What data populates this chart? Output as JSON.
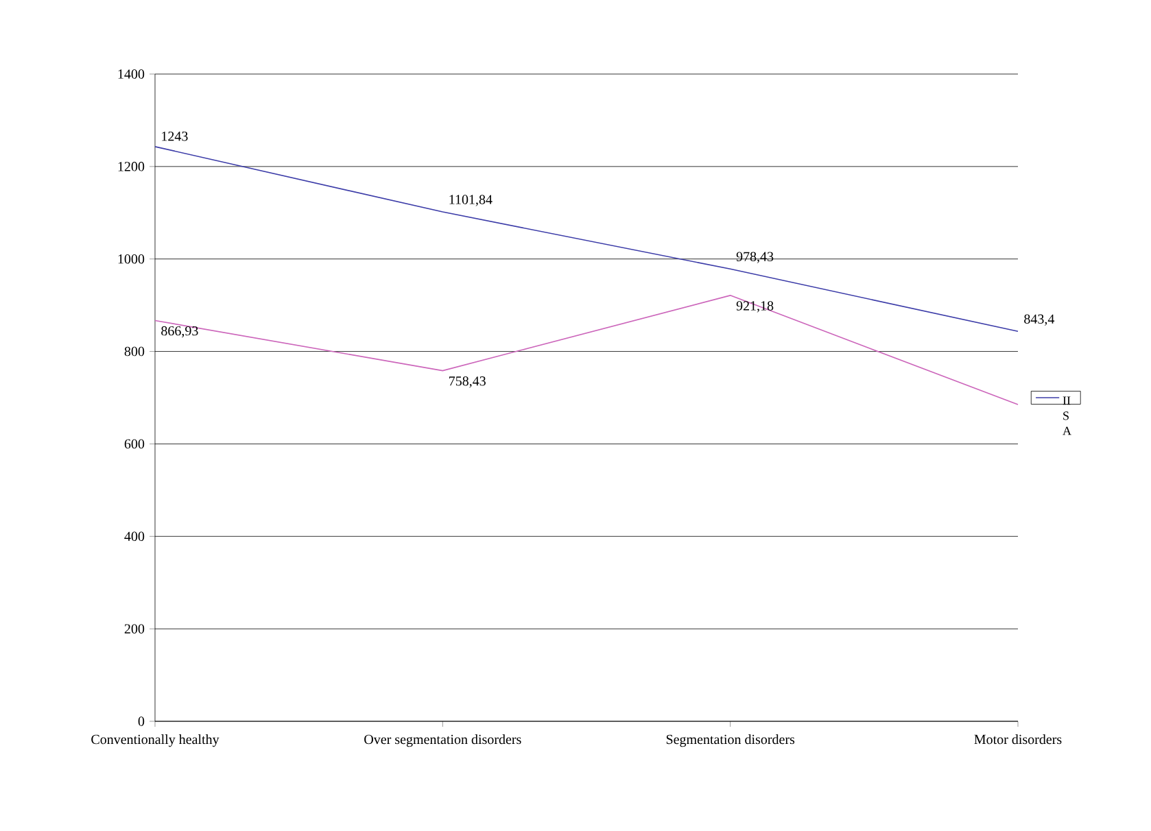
{
  "chart_data": {
    "type": "line",
    "categories": [
      "Conventionally healthy",
      "Over segmentation disorders",
      "Segmentation disorders",
      "Motor disorders"
    ],
    "series": [
      {
        "name": "II S A",
        "color": "#3c3ca8",
        "values": [
          1243,
          1101.84,
          978.43,
          843.4
        ],
        "value_labels": [
          "1243",
          "1101,84",
          "978,43",
          "843,4"
        ]
      },
      {
        "color": "#cc66bb",
        "values": [
          866.93,
          758.43,
          921.18,
          685
        ],
        "value_labels": [
          "866,93",
          "758,43",
          "921,18",
          null
        ]
      }
    ],
    "ylim": [
      0,
      1400
    ],
    "yticks": [
      0,
      200,
      400,
      600,
      800,
      1000,
      1200,
      1400
    ],
    "grid": "y",
    "legend": "right",
    "marker": "none",
    "line_style": "solid"
  }
}
